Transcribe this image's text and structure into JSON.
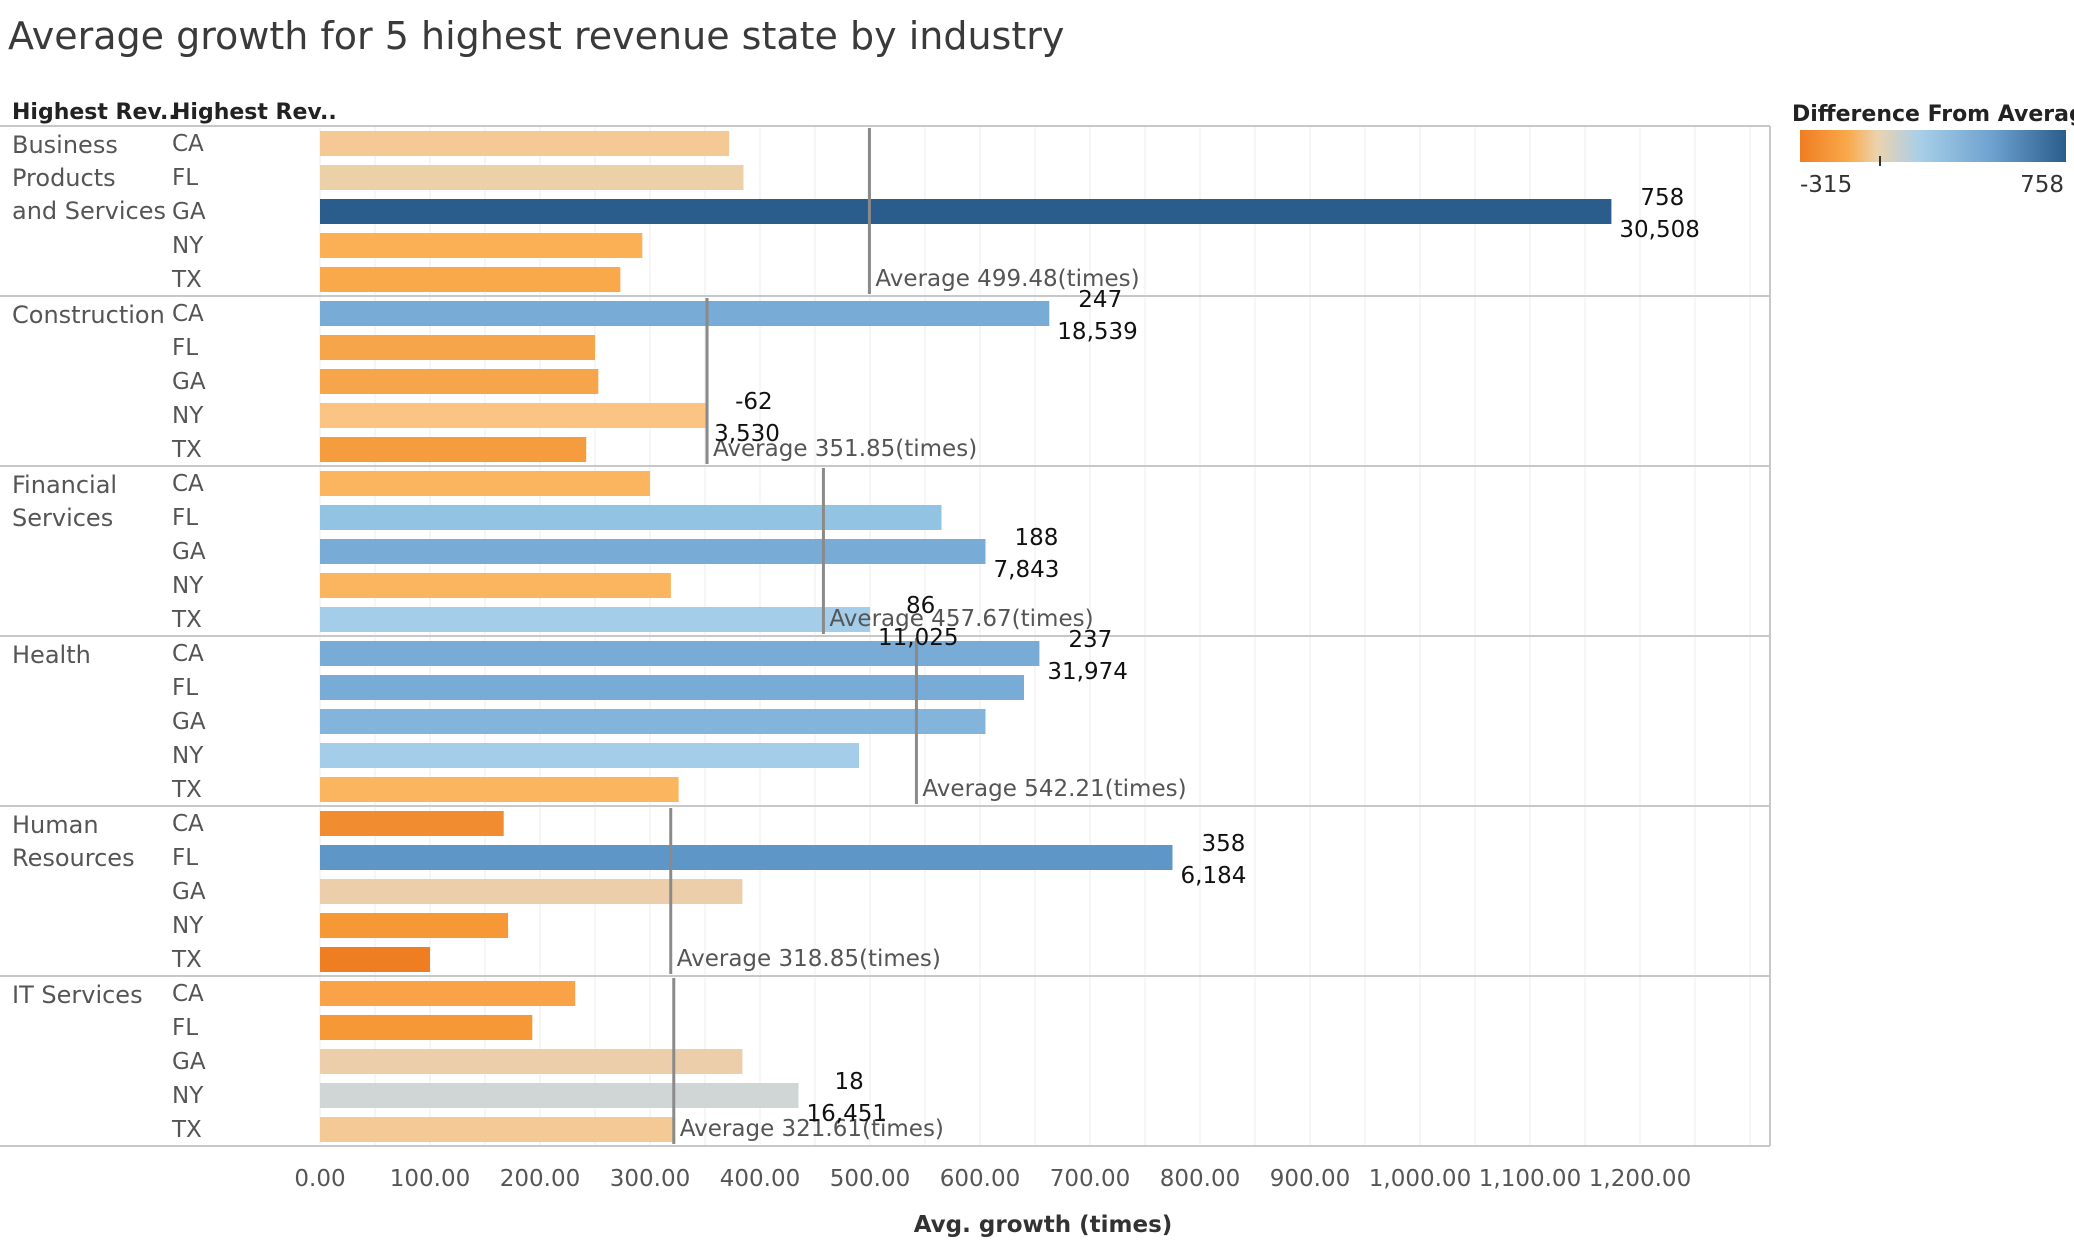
{
  "title": "Average growth for 5 highest revenue state by industry",
  "chart_data": {
    "type": "bar",
    "orientation": "horizontal",
    "row_headers": [
      "Highest Rev..",
      "Highest Rev.."
    ],
    "xlabel": "Avg. growth (times)",
    "xlim": [
      0,
      1320
    ],
    "x_ticks": [
      "0.00",
      "100.00",
      "200.00",
      "300.00",
      "400.00",
      "500.00",
      "600.00",
      "700.00",
      "800.00",
      "900.00",
      "1,000.00",
      "1,100.00",
      "1,200.00"
    ],
    "grid": true,
    "legend": {
      "title": "Difference From Averag..",
      "min_label": "-315",
      "max_label": "758",
      "min": -315,
      "max": 758,
      "colors": [
        "#ef7d22",
        "#f9a94a",
        "#ecd2ae",
        "#a8cfe8",
        "#6ea2cf",
        "#2a5c8c"
      ]
    },
    "groups": [
      {
        "industry": "Business Products and Services",
        "industry_lines": [
          "Business",
          "Products",
          "and Services"
        ],
        "average": 499.48,
        "average_label": "Average 499.48(times)",
        "bars": [
          {
            "state": "CA",
            "value": 372
          },
          {
            "state": "FL",
            "value": 385
          },
          {
            "state": "GA",
            "value": 1174,
            "diff": 758,
            "count": "30,508",
            "labels": [
              "758",
              "30,508"
            ]
          },
          {
            "state": "NY",
            "value": 293
          },
          {
            "state": "TX",
            "value": 273
          }
        ]
      },
      {
        "industry": "Construction",
        "industry_lines": [
          "Construction"
        ],
        "average": 351.85,
        "average_label": "Average 351.85(times)",
        "bars": [
          {
            "state": "CA",
            "value": 663,
            "diff": 247,
            "count": "18,539",
            "labels": [
              "247",
              "18,539"
            ]
          },
          {
            "state": "FL",
            "value": 250
          },
          {
            "state": "GA",
            "value": 253
          },
          {
            "state": "NY",
            "value": 351,
            "diff": -62,
            "count": "3,530",
            "labels": [
              "-62",
              "3,530"
            ]
          },
          {
            "state": "TX",
            "value": 242
          }
        ]
      },
      {
        "industry": "Financial Services",
        "industry_lines": [
          "Financial",
          "Services"
        ],
        "average": 457.67,
        "average_label": "Average 457.67(times)",
        "bars": [
          {
            "state": "CA",
            "value": 300
          },
          {
            "state": "FL",
            "value": 565
          },
          {
            "state": "GA",
            "value": 605,
            "diff": 188,
            "count": "7,843",
            "labels": [
              "188",
              "7,843"
            ]
          },
          {
            "state": "NY",
            "value": 319
          },
          {
            "state": "TX",
            "value": 500,
            "diff": 86,
            "count": "11,025",
            "labels": [
              "86",
              "11,025"
            ]
          }
        ]
      },
      {
        "industry": "Health",
        "industry_lines": [
          "Health"
        ],
        "average": 542.21,
        "average_label": "Average 542.21(times)",
        "bars": [
          {
            "state": "CA",
            "value": 654,
            "diff": 237,
            "count": "31,974",
            "labels": [
              "237",
              "31,974"
            ]
          },
          {
            "state": "FL",
            "value": 640
          },
          {
            "state": "GA",
            "value": 605
          },
          {
            "state": "NY",
            "value": 490
          },
          {
            "state": "TX",
            "value": 326
          }
        ]
      },
      {
        "industry": "Human Resources",
        "industry_lines": [
          "Human",
          "Resources"
        ],
        "average": 318.85,
        "average_label": "Average 318.85(times)",
        "bars": [
          {
            "state": "CA",
            "value": 167
          },
          {
            "state": "FL",
            "value": 775,
            "diff": 358,
            "count": "6,184",
            "labels": [
              "358",
              "6,184"
            ]
          },
          {
            "state": "GA",
            "value": 384
          },
          {
            "state": "NY",
            "value": 171
          },
          {
            "state": "TX",
            "value": 100
          }
        ]
      },
      {
        "industry": "IT Services",
        "industry_lines": [
          "IT Services"
        ],
        "average": 321.61,
        "average_label": "Average 321.61(times)",
        "bars": [
          {
            "state": "CA",
            "value": 232
          },
          {
            "state": "FL",
            "value": 193
          },
          {
            "state": "GA",
            "value": 384
          },
          {
            "state": "NY",
            "value": 435,
            "diff": 18,
            "count": "16,451",
            "labels": [
              "18",
              "16,451"
            ]
          },
          {
            "state": "TX",
            "value": 323
          }
        ]
      }
    ]
  },
  "colors": {
    "bars": {
      "Business Products and Services": [
        "#f4c995",
        "#ecd0a8",
        "#2a5c8c",
        "#fbb055",
        "#f9a84a"
      ],
      "Construction": [
        "#78acd6",
        "#f7a54a",
        "#f7a54a",
        "#fbc483",
        "#f59c3f"
      ],
      "Financial Services": [
        "#fbb55f",
        "#92c3e3",
        "#78acd6",
        "#fbb55f",
        "#a3cde8"
      ],
      "Health": [
        "#78acd6",
        "#78acd6",
        "#82b4dc",
        "#a3cde8",
        "#fbb55f"
      ],
      "Human Resources": [
        "#f28c30",
        "#5f96c8",
        "#ecceaa",
        "#f79836",
        "#ef7d22"
      ],
      "IT Services": [
        "#f9a247",
        "#f79836",
        "#ecceaa",
        "#d0d6d6",
        "#f4c995"
      ]
    }
  }
}
